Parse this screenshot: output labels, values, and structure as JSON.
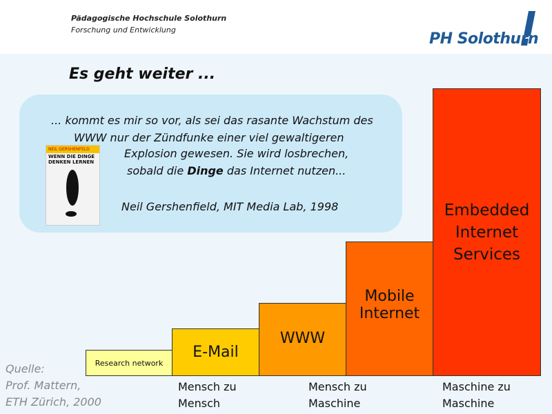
{
  "header": {
    "institution": "Pädagogische Hochschule Solothurn",
    "department": "Forschung und Entwicklung",
    "logo": "PH Solothurn"
  },
  "title": "Es geht weiter ...",
  "quote": {
    "lines": [
      "... kommt es mir so vor, als sei das rasante Wachstum des",
      "WWW nur der Zündfunke einer viel gewaltigeren",
      "Explosion gewesen. Sie wird losbrechen,"
    ],
    "last_line": {
      "before": "sobald die ",
      "bold": "Dinge",
      "after": " das Internet nutzen..."
    },
    "attribution": "Neil Gershenfield, MIT Media Lab, 1998"
  },
  "book": {
    "author": "NEIL GERSHENFELD",
    "title": "WENN DIE DINGE DENKEN LERNEN"
  },
  "steps": [
    "Research network",
    "E-Mail",
    "WWW",
    "Mobile Internet",
    "Embedded Internet Services"
  ],
  "phases": [
    [
      "Mensch zu",
      "Mensch"
    ],
    [
      "Mensch zu",
      "Maschine"
    ],
    [
      "Maschine zu",
      "Maschine"
    ]
  ],
  "source": [
    "Quelle:",
    "Prof. Mattern,",
    "ETH Zürich, 2000"
  ]
}
